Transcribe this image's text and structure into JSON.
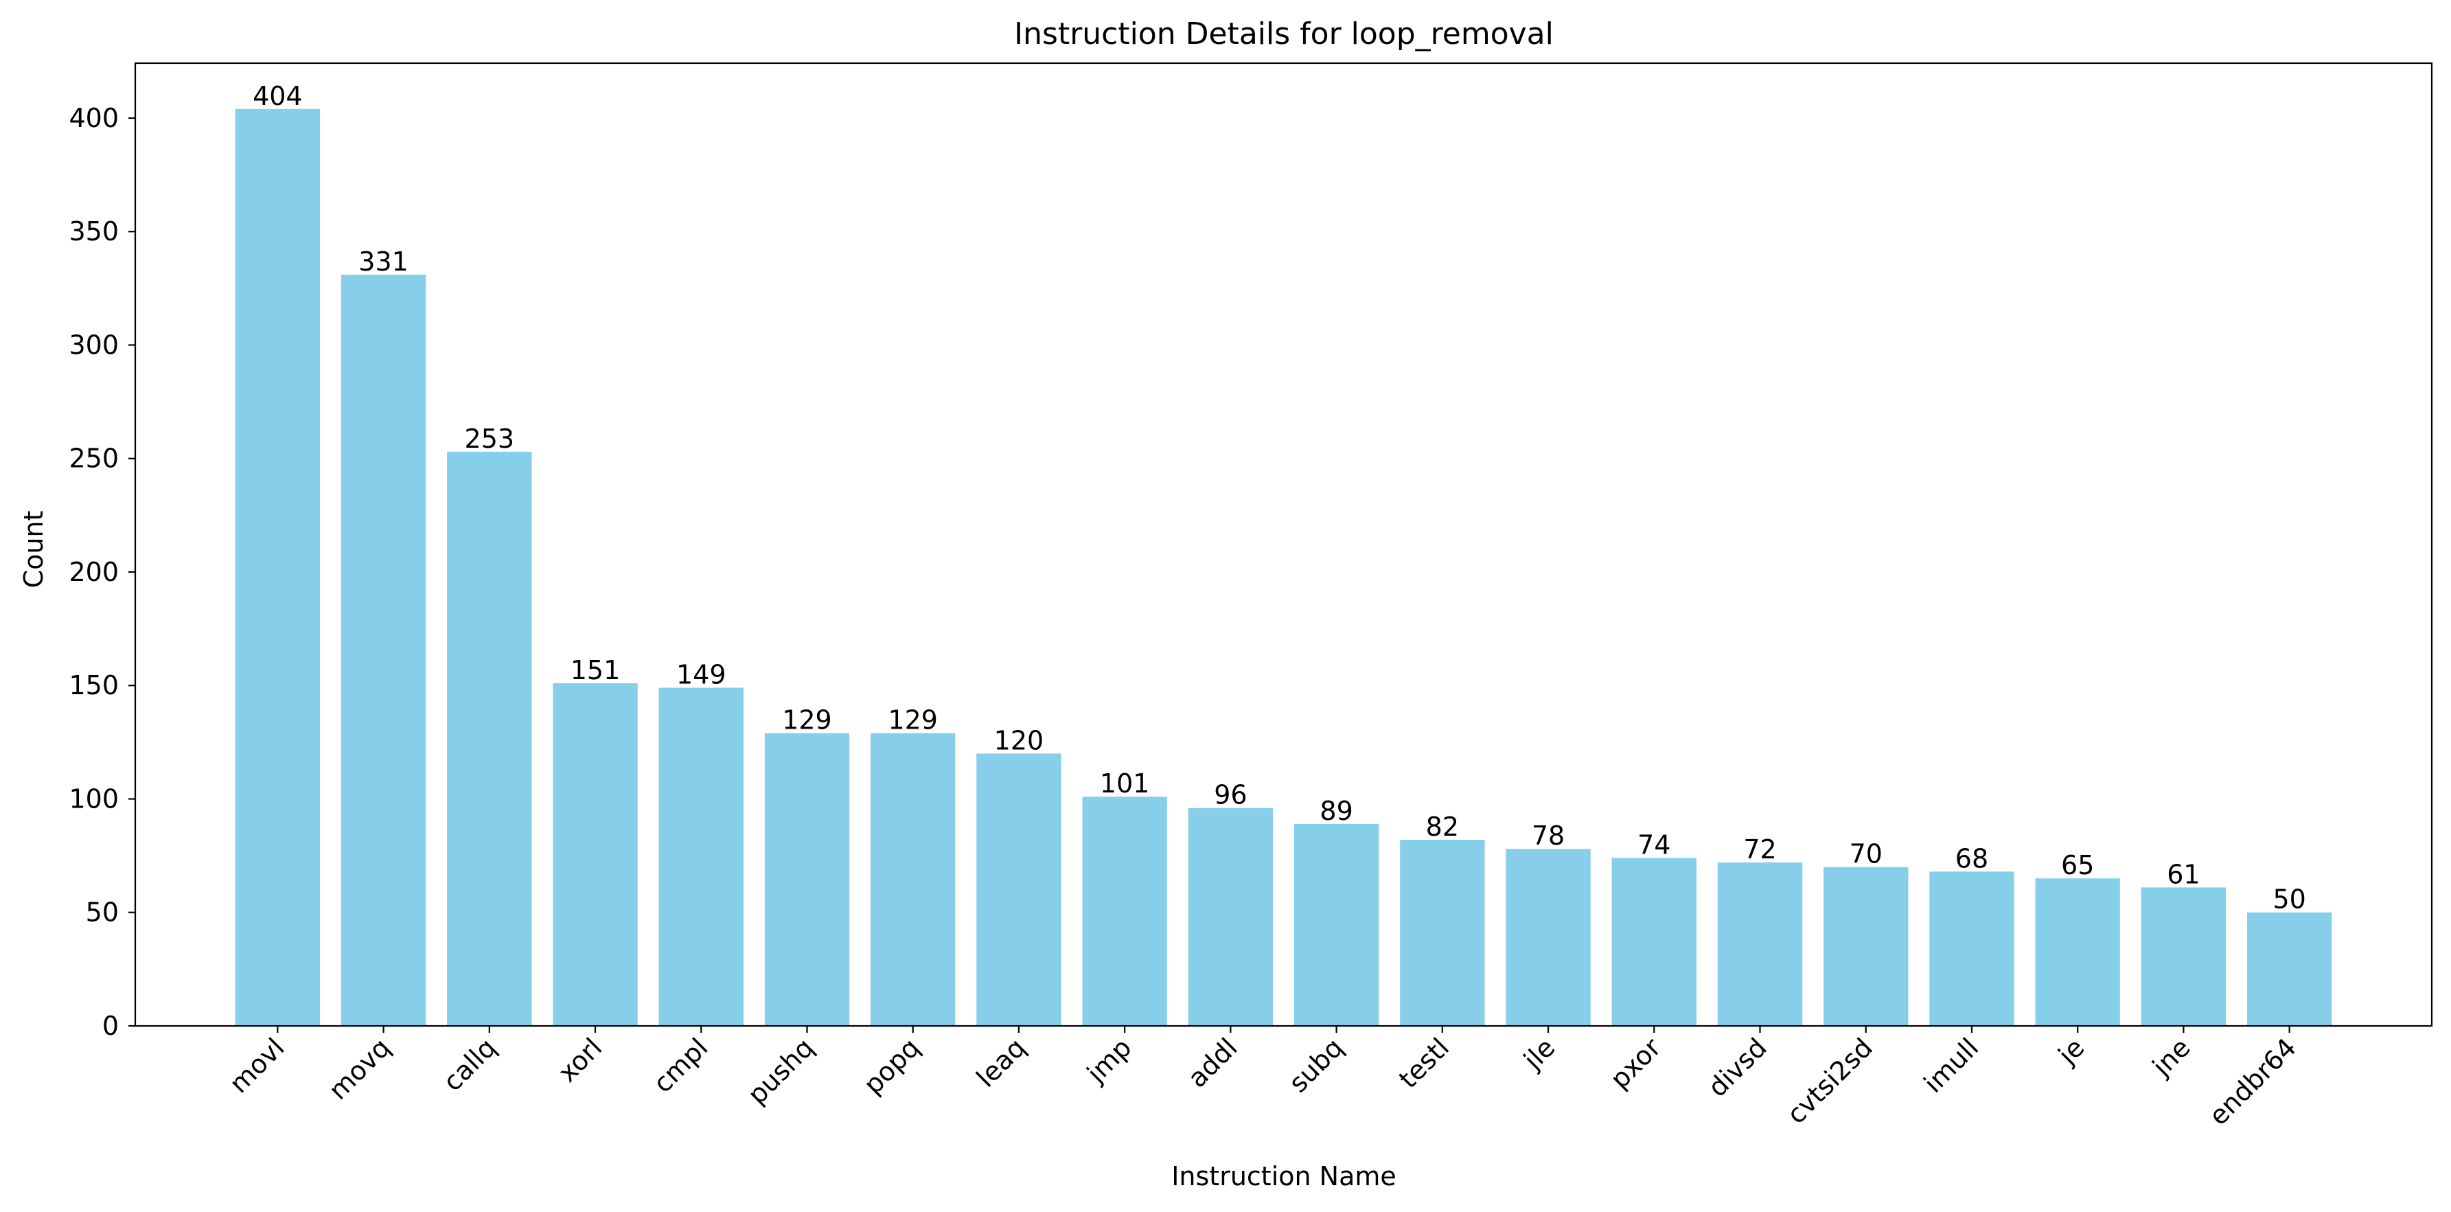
{
  "chart_data": {
    "type": "bar",
    "title": "Instruction Details for loop_removal",
    "xlabel": "Instruction Name",
    "ylabel": "Count",
    "categories": [
      "movl",
      "movq",
      "callq",
      "xorl",
      "cmpl",
      "pushq",
      "popq",
      "leaq",
      "jmp",
      "addl",
      "subq",
      "testl",
      "jle",
      "pxor",
      "divsd",
      "cvtsi2sd",
      "imull",
      "je",
      "jne",
      "endbr64"
    ],
    "values": [
      404,
      331,
      253,
      151,
      149,
      129,
      129,
      120,
      101,
      96,
      89,
      82,
      78,
      74,
      72,
      70,
      68,
      65,
      61,
      50
    ],
    "data_labels": [
      "404",
      "331",
      "253",
      "151",
      "149",
      "129",
      "129",
      "120",
      "101",
      "96",
      "89",
      "82",
      "78",
      "74",
      "72",
      "70",
      "68",
      "65",
      "61",
      "50"
    ],
    "ylim": [
      0,
      424.2
    ],
    "yticks": [
      0,
      50,
      100,
      150,
      200,
      250,
      300,
      350,
      400
    ],
    "ytick_labels": [
      "0",
      "50",
      "100",
      "150",
      "200",
      "250",
      "300",
      "350",
      "400"
    ],
    "grid": false,
    "bar_color": "#87ceeb",
    "axis_color": "#000000",
    "text_color": "#000000"
  }
}
